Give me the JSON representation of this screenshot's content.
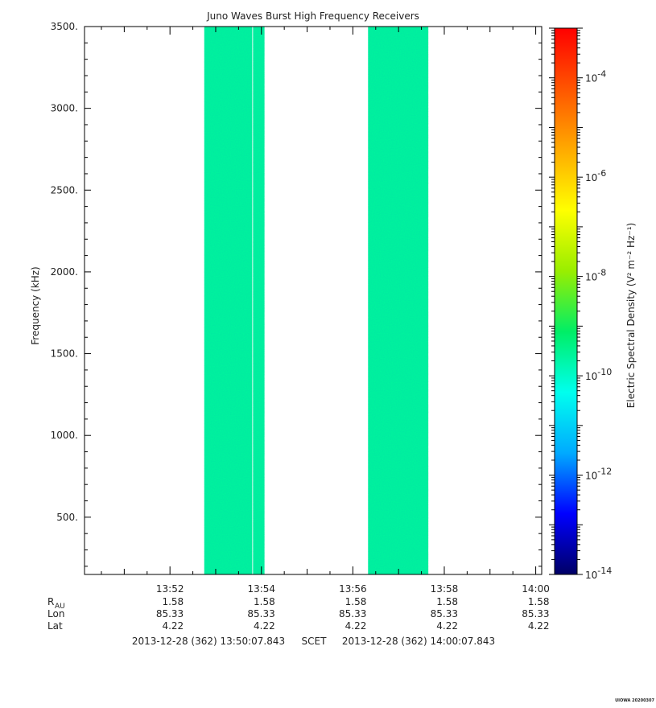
{
  "chart_data": {
    "type": "heatmap",
    "title": "Juno Waves Burst High Frequency Receivers",
    "ylabel": "Frequency (kHz)",
    "ylim": [
      150,
      3500
    ],
    "y_ticks": [
      {
        "value": 500,
        "label": "500."
      },
      {
        "value": 1000,
        "label": "1000."
      },
      {
        "value": 1500,
        "label": "1500."
      },
      {
        "value": 2000,
        "label": "2000."
      },
      {
        "value": 2500,
        "label": "2500."
      },
      {
        "value": 3000,
        "label": "3000."
      },
      {
        "value": 3500,
        "label": "3500."
      }
    ],
    "x_start": "2013-12-28T13:50:07.843",
    "x_end": "2013-12-28T14:00:07.843",
    "x_ticks": [
      {
        "time": "2013-12-28T13:52:00",
        "label": "13:52"
      },
      {
        "time": "2013-12-28T13:54:00",
        "label": "13:54"
      },
      {
        "time": "2013-12-28T13:56:00",
        "label": "13:56"
      },
      {
        "time": "2013-12-28T13:58:00",
        "label": "13:58"
      },
      {
        "time": "2013-12-28T14:00:00",
        "label": "14:00"
      }
    ],
    "data_segments": [
      {
        "start": "2013-12-28T13:52:45",
        "end": "2013-12-28T13:53:48"
      },
      {
        "start": "2013-12-28T13:53:49",
        "end": "2013-12-28T13:54:04"
      },
      {
        "start": "2013-12-28T13:56:20",
        "end": "2013-12-28T13:57:39"
      }
    ],
    "spectral_profile": [
      {
        "freq": 150,
        "level": -9.6
      },
      {
        "freq": 400,
        "level": -9.4
      },
      {
        "freq": 700,
        "level": -9.6
      },
      {
        "freq": 900,
        "level": -10.6
      },
      {
        "freq": 1200,
        "level": -10.3
      },
      {
        "freq": 1500,
        "level": -9.8
      },
      {
        "freq": 1800,
        "level": -9.9
      },
      {
        "freq": 2100,
        "level": -10.5
      },
      {
        "freq": 2500,
        "level": -10.1
      },
      {
        "freq": 3000,
        "level": -10.2
      },
      {
        "freq": 3500,
        "level": -10.2
      }
    ],
    "colorbar": {
      "label": "Electric Spectral Density (V² m⁻² Hz⁻¹)",
      "log_range": [
        -14,
        -3
      ],
      "ticks": [
        {
          "exp": -4,
          "base": "10",
          "sup": "-4"
        },
        {
          "exp": -6,
          "base": "10",
          "sup": "-6"
        },
        {
          "exp": -8,
          "base": "10",
          "sup": "-8"
        },
        {
          "exp": -10,
          "base": "10",
          "sup": "-10"
        },
        {
          "exp": -12,
          "base": "10",
          "sup": "-12"
        },
        {
          "exp": -14,
          "base": "10",
          "sup": "-14"
        }
      ],
      "colors": [
        "#000066",
        "#0000ff",
        "#00aaff",
        "#00ffee",
        "#00ee66",
        "#99ee00",
        "#ffff00",
        "#ffaa00",
        "#ff5500",
        "#ff0000"
      ]
    },
    "ephemeris": {
      "rows": [
        {
          "label": "R",
          "label_sub": "AU",
          "values": [
            "1.58",
            "1.58",
            "1.58",
            "1.58",
            "1.58"
          ]
        },
        {
          "label": "Lon",
          "label_sub": "",
          "values": [
            "85.33",
            "85.33",
            "85.33",
            "85.33",
            "85.33"
          ]
        },
        {
          "label": "Lat",
          "label_sub": "",
          "values": [
            "4.22",
            "4.22",
            "4.22",
            "4.22",
            "4.22"
          ]
        }
      ]
    },
    "time_range": {
      "start_label": "2013-12-28 (362) 13:50:07.843",
      "middle_label": "SCET",
      "end_label": "2013-12-28 (362) 14:00:07.843"
    },
    "footer_stamp": "UIOWA 20200307"
  }
}
